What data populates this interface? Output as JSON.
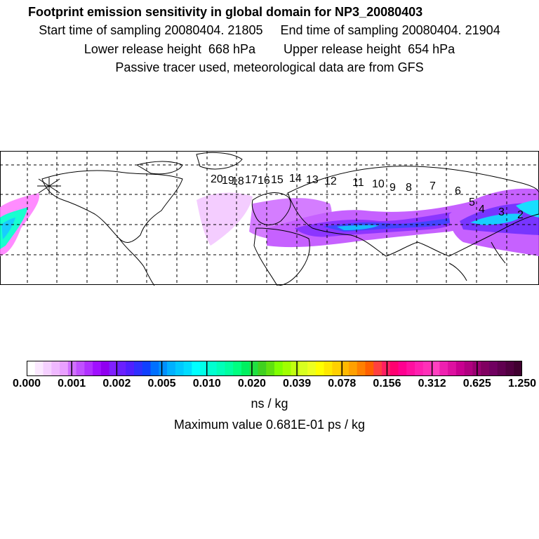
{
  "header": {
    "title": "Footprint emission sensitivity in global domain for NP3_20080403",
    "line2": "Start time of sampling 20080404. 21805     End time of sampling 20080404. 21904",
    "line3": "Lower release height  668 hPa        Upper release height  654 hPa",
    "line4": "Passive tracer used, meteorological data are from GFS"
  },
  "map": {
    "trajectory_labels": [
      "20",
      "19",
      "18",
      "17",
      "16",
      "15",
      "14",
      "13",
      "12",
      "11",
      "10",
      "9",
      "8",
      "7",
      "6",
      "5",
      "4",
      "3",
      "2"
    ]
  },
  "colorbar": {
    "tick_labels": [
      "0.000",
      "0.001",
      "0.002",
      "0.005",
      "0.010",
      "0.020",
      "0.039",
      "0.078",
      "0.156",
      "0.312",
      "0.625",
      "1.250"
    ],
    "colors": [
      "#ffffff",
      "#fbe8ff",
      "#f5d0ff",
      "#efb8ff",
      "#e9a0ff",
      "#d070ff",
      "#c050ff",
      "#b030ff",
      "#a010ff",
      "#9000f0",
      "#8020ff",
      "#6a20ff",
      "#5020ff",
      "#3030ff",
      "#1040ff",
      "#0070ff",
      "#0090ff",
      "#00b0ff",
      "#00c8ff",
      "#00dcff",
      "#00ffff",
      "#00ffe8",
      "#00ffd0",
      "#00ffb8",
      "#00ffa0",
      "#00ff80",
      "#00f060",
      "#20e040",
      "#40d020",
      "#60e010",
      "#80ff00",
      "#a0ff00",
      "#c0ff10",
      "#d8ff20",
      "#ecff20",
      "#ffff00",
      "#ffe800",
      "#ffd000",
      "#ffb800",
      "#ffa000",
      "#ff8000",
      "#ff6000",
      "#ff4040",
      "#ff2060",
      "#ff0070",
      "#ff0090",
      "#ff10a0",
      "#ff20b0",
      "#ff30b8",
      "#ff40c0",
      "#ee20b0",
      "#dd10a0",
      "#c80090",
      "#b00080",
      "#980070",
      "#800060",
      "#700060",
      "#600050",
      "#500040",
      "#400030"
    ],
    "units": "ns / kg"
  },
  "footer": {
    "max_value": "Maximum value  0.681E-01 ps / kg"
  }
}
